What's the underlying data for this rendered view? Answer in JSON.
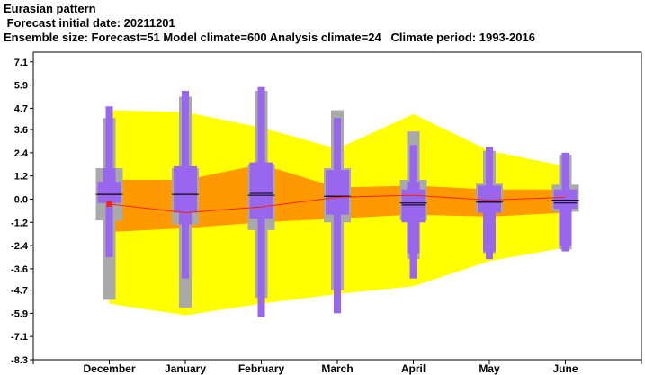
{
  "header": {
    "title": "Eurasian pattern",
    "forecast_date": " Forecast initial date: 20211201",
    "ensemble": "Ensemble size: Forecast=51 Model climate=600 Analysis climate=24   Climate period: 1993-2016"
  },
  "colors": {
    "climate_outer": "#ffff00",
    "climate_inner": "#ff9900",
    "model_box": "#a9a9a9",
    "forecast_box": "#9966ee",
    "analysis_line": "#ff2200",
    "median": "#000000",
    "axis": "#000000"
  },
  "chart_data": {
    "type": "box",
    "title": "Eurasian pattern",
    "categories": [
      "December",
      "January",
      "February",
      "March",
      "April",
      "May",
      "June"
    ],
    "yticks": [
      "7.1",
      "5.9",
      "4.7",
      "3.6",
      "2.4",
      "1.2",
      "0.0",
      "-1.2",
      "-2.4",
      "-3.6",
      "-4.7",
      "-5.9",
      "-7.1",
      "-8.3"
    ],
    "ylim": [
      -8.3,
      7.6
    ],
    "analysis_climate_band": {
      "outer_high": [
        4.6,
        4.5,
        3.7,
        2.6,
        4.4,
        2.5,
        1.7
      ],
      "outer_low": [
        -5.4,
        -6.0,
        -5.4,
        -4.9,
        -4.5,
        -3.2,
        -2.5
      ],
      "inner_high": [
        1.0,
        1.0,
        1.8,
        0.6,
        0.7,
        0.5,
        0.5
      ],
      "inner_low": [
        -1.7,
        -1.5,
        -1.2,
        -1.0,
        -0.8,
        -0.9,
        -0.7
      ]
    },
    "analysis_line": [
      -0.25,
      -0.7,
      -0.4,
      0.1,
      0.2,
      -0.05,
      0.1
    ],
    "model_climate": [
      {
        "whisker_low": -5.2,
        "q1": -1.1,
        "median": 0.25,
        "q3": 1.6,
        "whisker_high": 4.2
      },
      {
        "whisker_low": -5.6,
        "q1": -1.3,
        "median": 0.25,
        "q3": 1.6,
        "whisker_high": 5.3
      },
      {
        "whisker_low": -5.1,
        "q1": -1.6,
        "median": 0.2,
        "q3": 1.8,
        "whisker_high": 5.6
      },
      {
        "whisker_low": -4.7,
        "q1": -1.2,
        "median": 0.15,
        "q3": 1.6,
        "whisker_high": 4.6
      },
      {
        "whisker_low": -3.1,
        "q1": -1.1,
        "median": -0.2,
        "q3": 1.0,
        "whisker_high": 3.5
      },
      {
        "whisker_low": -2.8,
        "q1": -0.7,
        "median": -0.15,
        "q3": 0.8,
        "whisker_high": 2.5
      },
      {
        "whisker_low": -2.6,
        "q1": -0.65,
        "median": -0.05,
        "q3": 0.75,
        "whisker_high": 2.3
      }
    ],
    "forecast": [
      {
        "min": -3.0,
        "p10": -0.2,
        "q1": -0.2,
        "median": 0.25,
        "q3": 0.9,
        "p90": 1.6,
        "max": 4.8
      },
      {
        "min": -4.1,
        "p10": -1.3,
        "q1": -0.7,
        "median": 0.25,
        "q3": 1.7,
        "p90": 1.7,
        "max": 5.6
      },
      {
        "min": -6.1,
        "p10": -1.0,
        "q1": -1.0,
        "median": 0.3,
        "q3": 1.9,
        "p90": 1.9,
        "max": 5.8
      },
      {
        "min": -5.9,
        "p10": -0.8,
        "q1": -0.8,
        "median": 0.15,
        "q3": 1.5,
        "p90": 1.5,
        "max": 4.2
      },
      {
        "min": -4.1,
        "p10": -2.8,
        "q1": -1.2,
        "median": -0.3,
        "q3": 0.5,
        "p90": 0.9,
        "max": 2.8
      },
      {
        "min": -3.1,
        "p10": -2.7,
        "q1": -0.7,
        "median": -0.15,
        "q3": 0.7,
        "p90": 0.7,
        "max": 2.7
      },
      {
        "min": -2.7,
        "p10": -2.4,
        "q1": -0.5,
        "median": -0.2,
        "q3": 0.5,
        "p90": 0.5,
        "max": 2.4
      }
    ]
  }
}
